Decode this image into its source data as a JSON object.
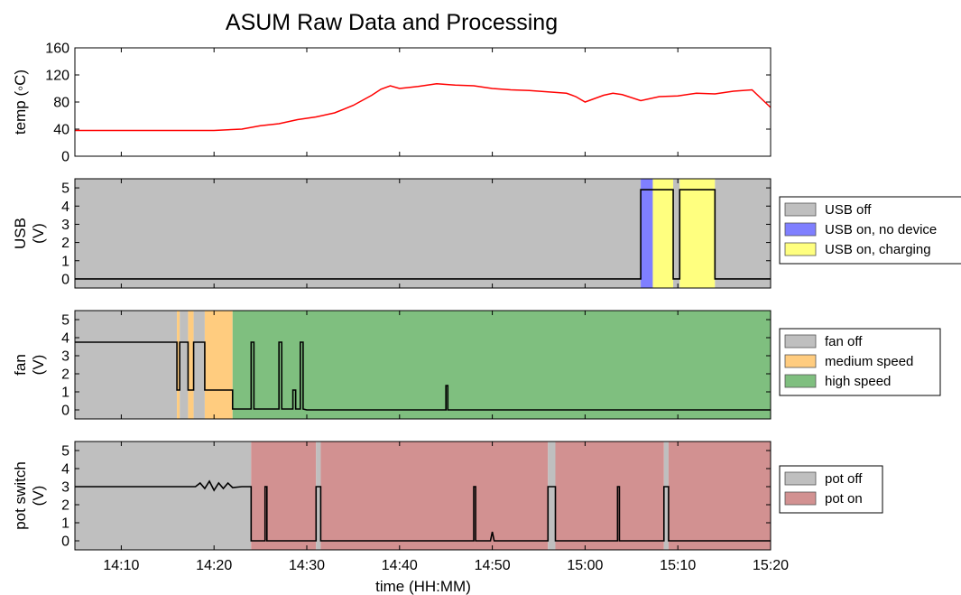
{
  "chart_data": {
    "type": "line",
    "title": "ASUM Raw Data and Processing",
    "xlabel": "time (HH:MM)",
    "x_range": [
      "14:05",
      "15:20"
    ],
    "x_ticks": [
      "14:10",
      "14:20",
      "14:30",
      "14:40",
      "14:50",
      "15:00",
      "15:10",
      "15:20"
    ],
    "panels": [
      {
        "ylabel": "temp (◦C)",
        "ylim": [
          0,
          160
        ],
        "yticks": [
          "0",
          "40",
          "80",
          "120",
          "160"
        ],
        "line_color": "#ff0000",
        "series": {
          "x": [
            "14:05",
            "14:20",
            "14:23",
            "14:25",
            "14:27",
            "14:29",
            "14:31",
            "14:33",
            "14:35",
            "14:37",
            "14:38",
            "14:39",
            "14:40",
            "14:42",
            "14:44",
            "14:46",
            "14:48",
            "14:50",
            "14:52",
            "14:54",
            "14:56",
            "14:58",
            "14:59",
            "15:00",
            "15:02",
            "15:03",
            "15:04",
            "15:06",
            "15:08",
            "15:10",
            "15:12",
            "15:14",
            "15:16",
            "15:18",
            "15:20"
          ],
          "y": [
            38,
            38,
            40,
            45,
            48,
            54,
            58,
            64,
            75,
            90,
            99,
            104,
            100,
            103,
            107,
            105,
            104,
            100,
            98,
            97,
            95,
            93,
            88,
            80,
            90,
            93,
            91,
            82,
            88,
            89,
            93,
            92,
            96,
            98,
            72
          ]
        },
        "legend": []
      },
      {
        "ylabel": "USB (V)",
        "ylim": [
          -0.5,
          5.5
        ],
        "yticks": [
          "0",
          "1",
          "2",
          "3",
          "4",
          "5"
        ],
        "line_color": "#000000",
        "series": {
          "x": [
            "14:05",
            "15:06",
            "15:06",
            "15:09.5",
            "15:09.5",
            "15:10.2",
            "15:10.2",
            "15:14",
            "15:14",
            "15:20"
          ],
          "y": [
            0,
            0,
            4.9,
            4.9,
            0,
            0,
            4.9,
            4.9,
            0,
            0
          ]
        },
        "spans": [
          {
            "start": "14:05",
            "end": "15:06",
            "state": "USB off"
          },
          {
            "start": "15:06",
            "end": "15:07.3",
            "state": "USB on, no device"
          },
          {
            "start": "15:07.3",
            "end": "15:09.5",
            "state": "USB on, charging"
          },
          {
            "start": "15:09.5",
            "end": "15:10.2",
            "state": "USB off"
          },
          {
            "start": "15:10.2",
            "end": "15:14",
            "state": "USB on, charging"
          },
          {
            "start": "15:14",
            "end": "15:20",
            "state": "USB off"
          }
        ],
        "legend": [
          {
            "label": "USB off",
            "color": "#bfbfbf"
          },
          {
            "label": "USB on, no device",
            "color": "#7f7fff"
          },
          {
            "label": "USB on, charging",
            "color": "#ffff7f"
          }
        ]
      },
      {
        "ylabel": "fan (V)",
        "ylim": [
          -0.5,
          5.5
        ],
        "yticks": [
          "0",
          "1",
          "2",
          "3",
          "4",
          "5"
        ],
        "line_color": "#000000",
        "series": {
          "x": [
            "14:05",
            "14:16",
            "14:16",
            "14:16.3",
            "14:16.3",
            "14:17.2",
            "14:17.2",
            "14:17.8",
            "14:17.8",
            "14:19",
            "14:19",
            "14:22",
            "14:22",
            "14:24",
            "14:24",
            "14:24.3",
            "14:24.3",
            "14:27",
            "14:27",
            "14:27.3",
            "14:27.3",
            "14:28.5",
            "14:28.5",
            "14:28.8",
            "14:28.8",
            "14:29.3",
            "14:29.3",
            "14:29.6",
            "14:29.6",
            "14:30",
            "14:45",
            "14:45",
            "14:45.2",
            "14:45.2",
            "15:20"
          ],
          "y": [
            3.75,
            3.75,
            1.1,
            1.1,
            3.75,
            3.75,
            1.1,
            1.1,
            3.75,
            3.75,
            1.1,
            1.1,
            0.05,
            0.05,
            3.75,
            3.75,
            0.05,
            0.05,
            3.75,
            3.75,
            0.05,
            0.05,
            1.1,
            1.1,
            0.05,
            0.05,
            3.75,
            3.75,
            0.05,
            0.0,
            0.0,
            1.35,
            1.35,
            0.0,
            0.0
          ]
        },
        "spans": [
          {
            "start": "14:05",
            "end": "14:16",
            "state": "fan off"
          },
          {
            "start": "14:16",
            "end": "14:16.3",
            "state": "medium speed"
          },
          {
            "start": "14:16.3",
            "end": "14:17.2",
            "state": "fan off"
          },
          {
            "start": "14:17.2",
            "end": "14:17.8",
            "state": "medium speed"
          },
          {
            "start": "14:17.8",
            "end": "14:19",
            "state": "fan off"
          },
          {
            "start": "14:19",
            "end": "14:22",
            "state": "medium speed"
          },
          {
            "start": "14:22",
            "end": "15:20",
            "state": "high speed"
          }
        ],
        "legend": [
          {
            "label": "fan off",
            "color": "#bfbfbf"
          },
          {
            "label": "medium speed",
            "color": "#ffcc7f"
          },
          {
            "label": "high speed",
            "color": "#7fbf7f"
          }
        ]
      },
      {
        "ylabel": "pot switch (V)",
        "ylim": [
          -0.5,
          5.5
        ],
        "yticks": [
          "0",
          "1",
          "2",
          "3",
          "4",
          "5"
        ],
        "line_color": "#000000",
        "series": {
          "x": [
            "14:05",
            "14:18",
            "14:18.5",
            "14:19",
            "14:19.5",
            "14:20",
            "14:20.5",
            "14:21",
            "14:21.5",
            "14:22",
            "14:23",
            "14:24",
            "14:24",
            "14:25.5",
            "14:25.5",
            "14:25.7",
            "14:25.7",
            "14:31",
            "14:31",
            "14:31.5",
            "14:31.5",
            "14:48",
            "14:48",
            "14:48.2",
            "14:48.2",
            "14:49.8",
            "14:50",
            "14:50.2",
            "14:56",
            "14:56",
            "14:56.8",
            "14:56.8",
            "15:03.5",
            "15:03.5",
            "15:03.7",
            "15:03.7",
            "15:08.5",
            "15:08.5",
            "15:09",
            "15:09",
            "15:20"
          ],
          "y": [
            3.0,
            3.0,
            3.2,
            2.9,
            3.3,
            2.8,
            3.2,
            2.9,
            3.2,
            2.95,
            3.0,
            3.0,
            0.0,
            0.0,
            3.0,
            3.0,
            0.0,
            0.0,
            3.0,
            3.0,
            0.0,
            0.0,
            3.0,
            3.0,
            0.0,
            0.0,
            0.5,
            0.0,
            0.0,
            3.0,
            3.0,
            0.0,
            0.0,
            3.0,
            3.0,
            0.0,
            0.0,
            3.0,
            3.0,
            0.0,
            0.0
          ]
        },
        "spans": [
          {
            "start": "14:05",
            "end": "14:24",
            "state": "pot off"
          },
          {
            "start": "14:24",
            "end": "14:31",
            "state": "pot on"
          },
          {
            "start": "14:31",
            "end": "14:31.5",
            "state": "pot off"
          },
          {
            "start": "14:31.5",
            "end": "14:56",
            "state": "pot on"
          },
          {
            "start": "14:56",
            "end": "14:56.8",
            "state": "pot off"
          },
          {
            "start": "14:56.8",
            "end": "15:08.5",
            "state": "pot on"
          },
          {
            "start": "15:08.5",
            "end": "15:09",
            "state": "pot off"
          },
          {
            "start": "15:09",
            "end": "15:20",
            "state": "pot on"
          }
        ],
        "legend": [
          {
            "label": "pot off",
            "color": "#bfbfbf"
          },
          {
            "label": "pot on",
            "color": "#d29191"
          }
        ]
      }
    ]
  }
}
